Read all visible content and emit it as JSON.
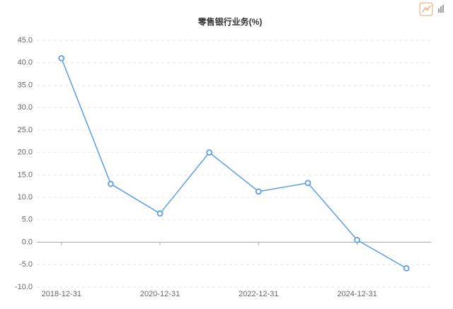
{
  "chart_data": {
    "type": "line",
    "title": "零售银行业务(%)",
    "categories": [
      "2018-12-31",
      null,
      "2020-12-31",
      null,
      "2022-12-31",
      null,
      "2024-12-31",
      null
    ],
    "series": [
      {
        "name": "零售银行业务",
        "color": "#5b9ee6",
        "values": [
          41.0,
          13.0,
          6.4,
          20.0,
          11.3,
          13.2,
          0.5,
          -5.8
        ]
      }
    ],
    "ylim": [
      -10,
      45
    ],
    "yticks": [
      {
        "value": -10,
        "label": "-10.0"
      },
      {
        "value": -5,
        "label": "-5.0"
      },
      {
        "value": 0,
        "label": "0.0"
      },
      {
        "value": 5,
        "label": "5.0"
      },
      {
        "value": 10,
        "label": "10.0"
      },
      {
        "value": 15,
        "label": "15.0"
      },
      {
        "value": 20,
        "label": "20.0"
      },
      {
        "value": 25,
        "label": "25.0"
      },
      {
        "value": 30,
        "label": "30.0"
      },
      {
        "value": 35,
        "label": "35.0"
      },
      {
        "value": 40,
        "label": "40.0"
      },
      {
        "value": 45,
        "label": "45.0"
      }
    ],
    "grid": true
  }
}
